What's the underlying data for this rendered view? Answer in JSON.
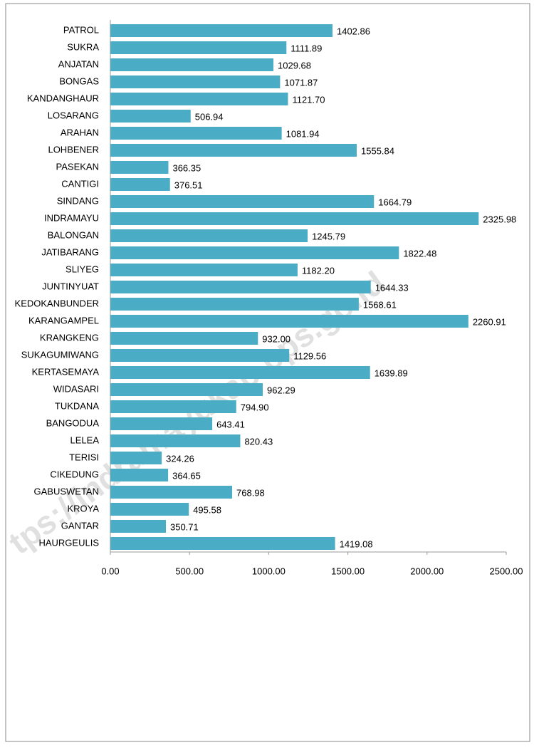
{
  "chart_data": {
    "type": "barh",
    "watermark": "tps://indramayukab.bps.go.id",
    "categories": [
      "PATROL",
      "SUKRA",
      "ANJATAN",
      "BONGAS",
      "KANDANGHAUR",
      "LOSARANG",
      "ARAHAN",
      "LOHBENER",
      "PASEKAN",
      "CANTIGI",
      "SINDANG",
      "INDRAMAYU",
      "BALONGAN",
      "JATIBARANG",
      "SLIYEG",
      "JUNTINYUAT",
      "KEDOKANBUNDER",
      "KARANGAMPEL",
      "KRANGKENG",
      "SUKAGUMIWANG",
      "KERTASEMAYA",
      "WIDASARI",
      "TUKDANA",
      "BANGODUA",
      "LELEA",
      "TERISI",
      "CIKEDUNG",
      "GABUSWETAN",
      "KROYA",
      "GANTAR",
      "HAURGEULIS"
    ],
    "values": [
      1402.86,
      1111.89,
      1029.68,
      1071.87,
      1121.7,
      506.94,
      1081.94,
      1555.84,
      366.35,
      376.51,
      1664.79,
      2325.98,
      1245.79,
      1822.48,
      1182.2,
      1644.33,
      1568.61,
      2260.91,
      932,
      1129.56,
      1639.89,
      962.29,
      794.9,
      643.41,
      820.43,
      324.26,
      364.65,
      768.98,
      495.58,
      350.71,
      1419.08
    ],
    "value_labels": [
      "1402.86",
      "1111.89",
      "1029.68",
      "1071.87",
      "1121.70",
      "506.94",
      "1081.94",
      "1555.84",
      "366.35",
      "376.51",
      "1664.79",
      "2325.98",
      "1245.79",
      "1822.48",
      "1182.20",
      "1644.33",
      "1568.61",
      "2260.91",
      "932.00",
      "1129.56",
      "1639.89",
      "962.29",
      "794.90",
      "643.41",
      "820.43",
      "324.26",
      "364.65",
      "768.98",
      "495.58",
      "350.71",
      "1419.08"
    ],
    "color": "#4bacc6",
    "xlim": [
      0,
      2500
    ],
    "xticks": [
      {
        "value": 0,
        "label": "0.00"
      },
      {
        "value": 500,
        "label": "500.00"
      },
      {
        "value": 1000,
        "label": "1000.00"
      },
      {
        "value": 1500,
        "label": "1500.00"
      },
      {
        "value": 2000,
        "label": "2000.00"
      },
      {
        "value": 2500,
        "label": "2500.00"
      }
    ]
  }
}
